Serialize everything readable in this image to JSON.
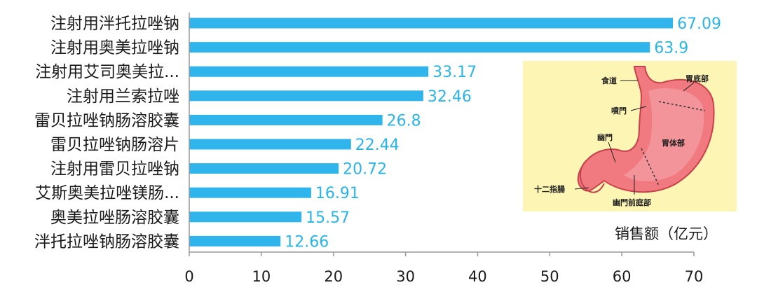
{
  "chart_data": {
    "type": "bar",
    "orientation": "horizontal",
    "categories": [
      "注射用泮托拉唑钠",
      "注射用奥美拉唑钠",
      "注射用艾司奥美拉...",
      "注射用兰索拉唑",
      "雷贝拉唑钠肠溶胶囊",
      "雷贝拉唑钠肠溶片",
      "注射用雷贝拉唑钠",
      "艾斯奥美拉唑镁肠...",
      "奥美拉唑肠溶胶囊",
      "泮托拉唑钠肠溶胶囊"
    ],
    "values": [
      67.09,
      63.9,
      33.17,
      32.46,
      26.8,
      22.44,
      20.72,
      16.91,
      15.57,
      12.66
    ],
    "value_labels": [
      "67.09",
      "63.9",
      "33.17",
      "32.46",
      "26.8",
      "22.44",
      "20.72",
      "16.91",
      "15.57",
      "12.66"
    ],
    "xlim": [
      0,
      70
    ],
    "xticks": [
      "0",
      "10",
      "20",
      "30",
      "40",
      "50",
      "60",
      "70"
    ],
    "xlabel": "销售额（亿元）",
    "bar_color": "#2fb4ec",
    "label_color": "#29b5ea",
    "grid": false,
    "legend": "none"
  },
  "inset": {
    "type": "illustration",
    "subject": "stomach-anatomy",
    "background_color": "#fdf5b4",
    "labels": {
      "esophagus": "食道",
      "fundus": "胃底部",
      "cardia": "噴門",
      "pylorus": "幽門",
      "body": "胃体部",
      "duodenum": "十二指腸",
      "antrum": "幽門前庭部"
    }
  }
}
